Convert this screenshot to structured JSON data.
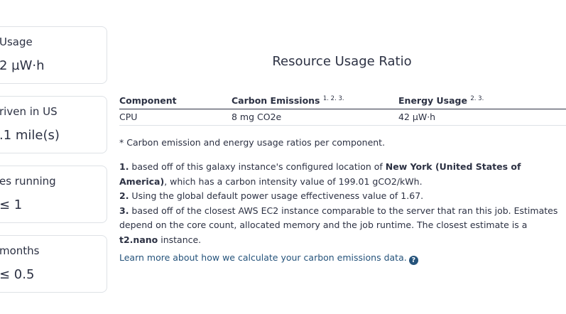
{
  "cards": [
    {
      "label": " Usage",
      "value": "2 µW·h"
    },
    {
      "label": "riven in US",
      "value": ".1 mile(s)"
    },
    {
      "label": "es running",
      "value": "≤ 1"
    },
    {
      "label": "months",
      "value": "≤ 0.5"
    }
  ],
  "ratio": {
    "title": "Resource Usage Ratio",
    "headers": {
      "component": "Component",
      "carbon": "Carbon Emissions",
      "carbon_refs": "1. 2. 3.",
      "energy": "Energy Usage",
      "energy_refs": "2. 3."
    },
    "rows": [
      {
        "component": "CPU",
        "carbon": "8 mg CO2e",
        "energy": "42 µW·h"
      }
    ],
    "footnote": "* Carbon emission and energy usage ratios per component."
  },
  "notes": {
    "n1_marker": "1.",
    "n1_text_a": " based off of this galaxy instance's configured location of ",
    "n1_location": "New York (United States of America)",
    "n1_text_b": ", which has a carbon intensity value of 199.01 gCO2/kWh.",
    "n2_marker": "2.",
    "n2_text": " Using the global default power usage effectiveness value of 1.67.",
    "n3_marker": "3.",
    "n3_text_a": " based off of the closest AWS EC2 instance comparable to the server that ran this job. Estimates depend on the core count, allocated memory and the job runtime. The closest estimate is a ",
    "n3_instance": "t2.nano",
    "n3_text_b": " instance."
  },
  "learn_more": {
    "text": "Learn more about how we calculate your carbon emissions data.",
    "icon": "question-circle-icon",
    "icon_glyph": "?"
  }
}
